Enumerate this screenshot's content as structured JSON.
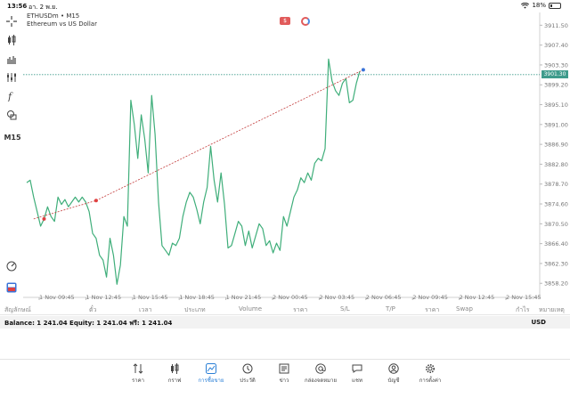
{
  "status": {
    "time": "13:56",
    "date": "อา. 2 พ.ย.",
    "battery": "18%"
  },
  "toolbar": {
    "timeframe": "M15"
  },
  "chart": {
    "symbol_line": "ETHUSDm • M15",
    "description": "Ethereum vs US Dollar",
    "current_price": "3901.30",
    "trade_icon_label": "$"
  },
  "chart_data": {
    "type": "line",
    "series": [
      {
        "values": [
          3879.0,
          3879.5,
          3876.0,
          3873.0,
          3870.0,
          3871.5,
          3874.0,
          3872.0,
          3871.0,
          3876.0,
          3874.5,
          3875.5,
          3874.0,
          3875.0,
          3876.0,
          3875.0,
          3876.0,
          3875.0,
          3873.0,
          3868.5,
          3867.5,
          3864.0,
          3863.0,
          3859.5,
          3867.5,
          3864.0,
          3858.0,
          3862.0,
          3872.0,
          3870.0,
          3896.0,
          3891.0,
          3884.0,
          3893.0,
          3888.0,
          3881.0,
          3897.0,
          3889.0,
          3875.0,
          3866.0,
          3865.0,
          3864.0,
          3866.5,
          3866.0,
          3867.5,
          3872.0,
          3875.0,
          3877.0,
          3876.0,
          3873.5,
          3870.5,
          3875.0,
          3878.0,
          3886.5,
          3879.5,
          3875.0,
          3881.0,
          3874.5,
          3865.5,
          3866.0,
          3868.5,
          3871.0,
          3870.0,
          3866.0,
          3869.0,
          3865.5,
          3868.0,
          3870.5,
          3869.5,
          3866.0,
          3867.0,
          3864.5,
          3866.5,
          3865.0,
          3872.0,
          3870.0,
          3873.0,
          3876.0,
          3877.5,
          3880.0,
          3879.0,
          3881.0,
          3879.5,
          3883.0,
          3884.0,
          3883.5,
          3886.0,
          3904.5,
          3900.0,
          3898.0,
          3897.0,
          3899.5,
          3900.5,
          3895.5,
          3896.0,
          3899.5,
          3902.0
        ]
      }
    ],
    "x_tick_labels": [
      "1 Nov 09:45",
      "1 Nov 12:45",
      "1 Nov 15:45",
      "1 Nov 18:45",
      "1 Nov 21:45",
      "2 Nov 00:45",
      "2 Nov 03:45",
      "2 Nov 06:45",
      "2 Nov 09:45",
      "2 Nov 12:45",
      "2 Nov 15:45"
    ],
    "y_tick_labels": [
      "3911.50",
      "3907.40",
      "3903.30",
      "3899.20",
      "3895.10",
      "3891.00",
      "3886.90",
      "3882.80",
      "3878.70",
      "3874.60",
      "3870.50",
      "3866.40",
      "3862.30",
      "3858.20"
    ],
    "ylim": [
      3855.3,
      3913.4
    ],
    "current_price": 3901.3,
    "trade_line": {
      "from": {
        "index": 2,
        "price": 3871.5
      },
      "mid": {
        "index": 20,
        "price": 3875.3
      },
      "to": {
        "index": 97,
        "price": 3902.3
      }
    },
    "colors": {
      "line": "#3fae7a",
      "trade": "#c33c3c",
      "entry": "#e04040",
      "exit": "#3a73d8",
      "price_line": "#3f9b8c"
    }
  },
  "columns": [
    "สัญลักษณ์",
    "ตั๋ว",
    "เวลา",
    "ประเภท",
    "Volume",
    "ราคา",
    "S/L",
    "T/P",
    "ราคา",
    "Swap",
    "กำไร",
    "หมายเหตุ"
  ],
  "balance": {
    "text": "Balance: 1 241.04 Equity: 1 241.04 ฟรี: 1 241.04",
    "currency": "USD"
  },
  "nav": [
    {
      "label": "ราคา",
      "icon": "quotes-icon"
    },
    {
      "label": "กราฟ",
      "icon": "candles-icon"
    },
    {
      "label": "การซื้อขาย",
      "icon": "trade-icon",
      "active": true
    },
    {
      "label": "ประวัติ",
      "icon": "history-icon"
    },
    {
      "label": "ข่าว",
      "icon": "news-icon"
    },
    {
      "label": "กล่องจดหมาย",
      "icon": "mailbox-icon"
    },
    {
      "label": "แชท",
      "icon": "chat-icon"
    },
    {
      "label": "บัญชี",
      "icon": "account-icon"
    },
    {
      "label": "การตั้งค่า",
      "icon": "settings-icon"
    }
  ]
}
